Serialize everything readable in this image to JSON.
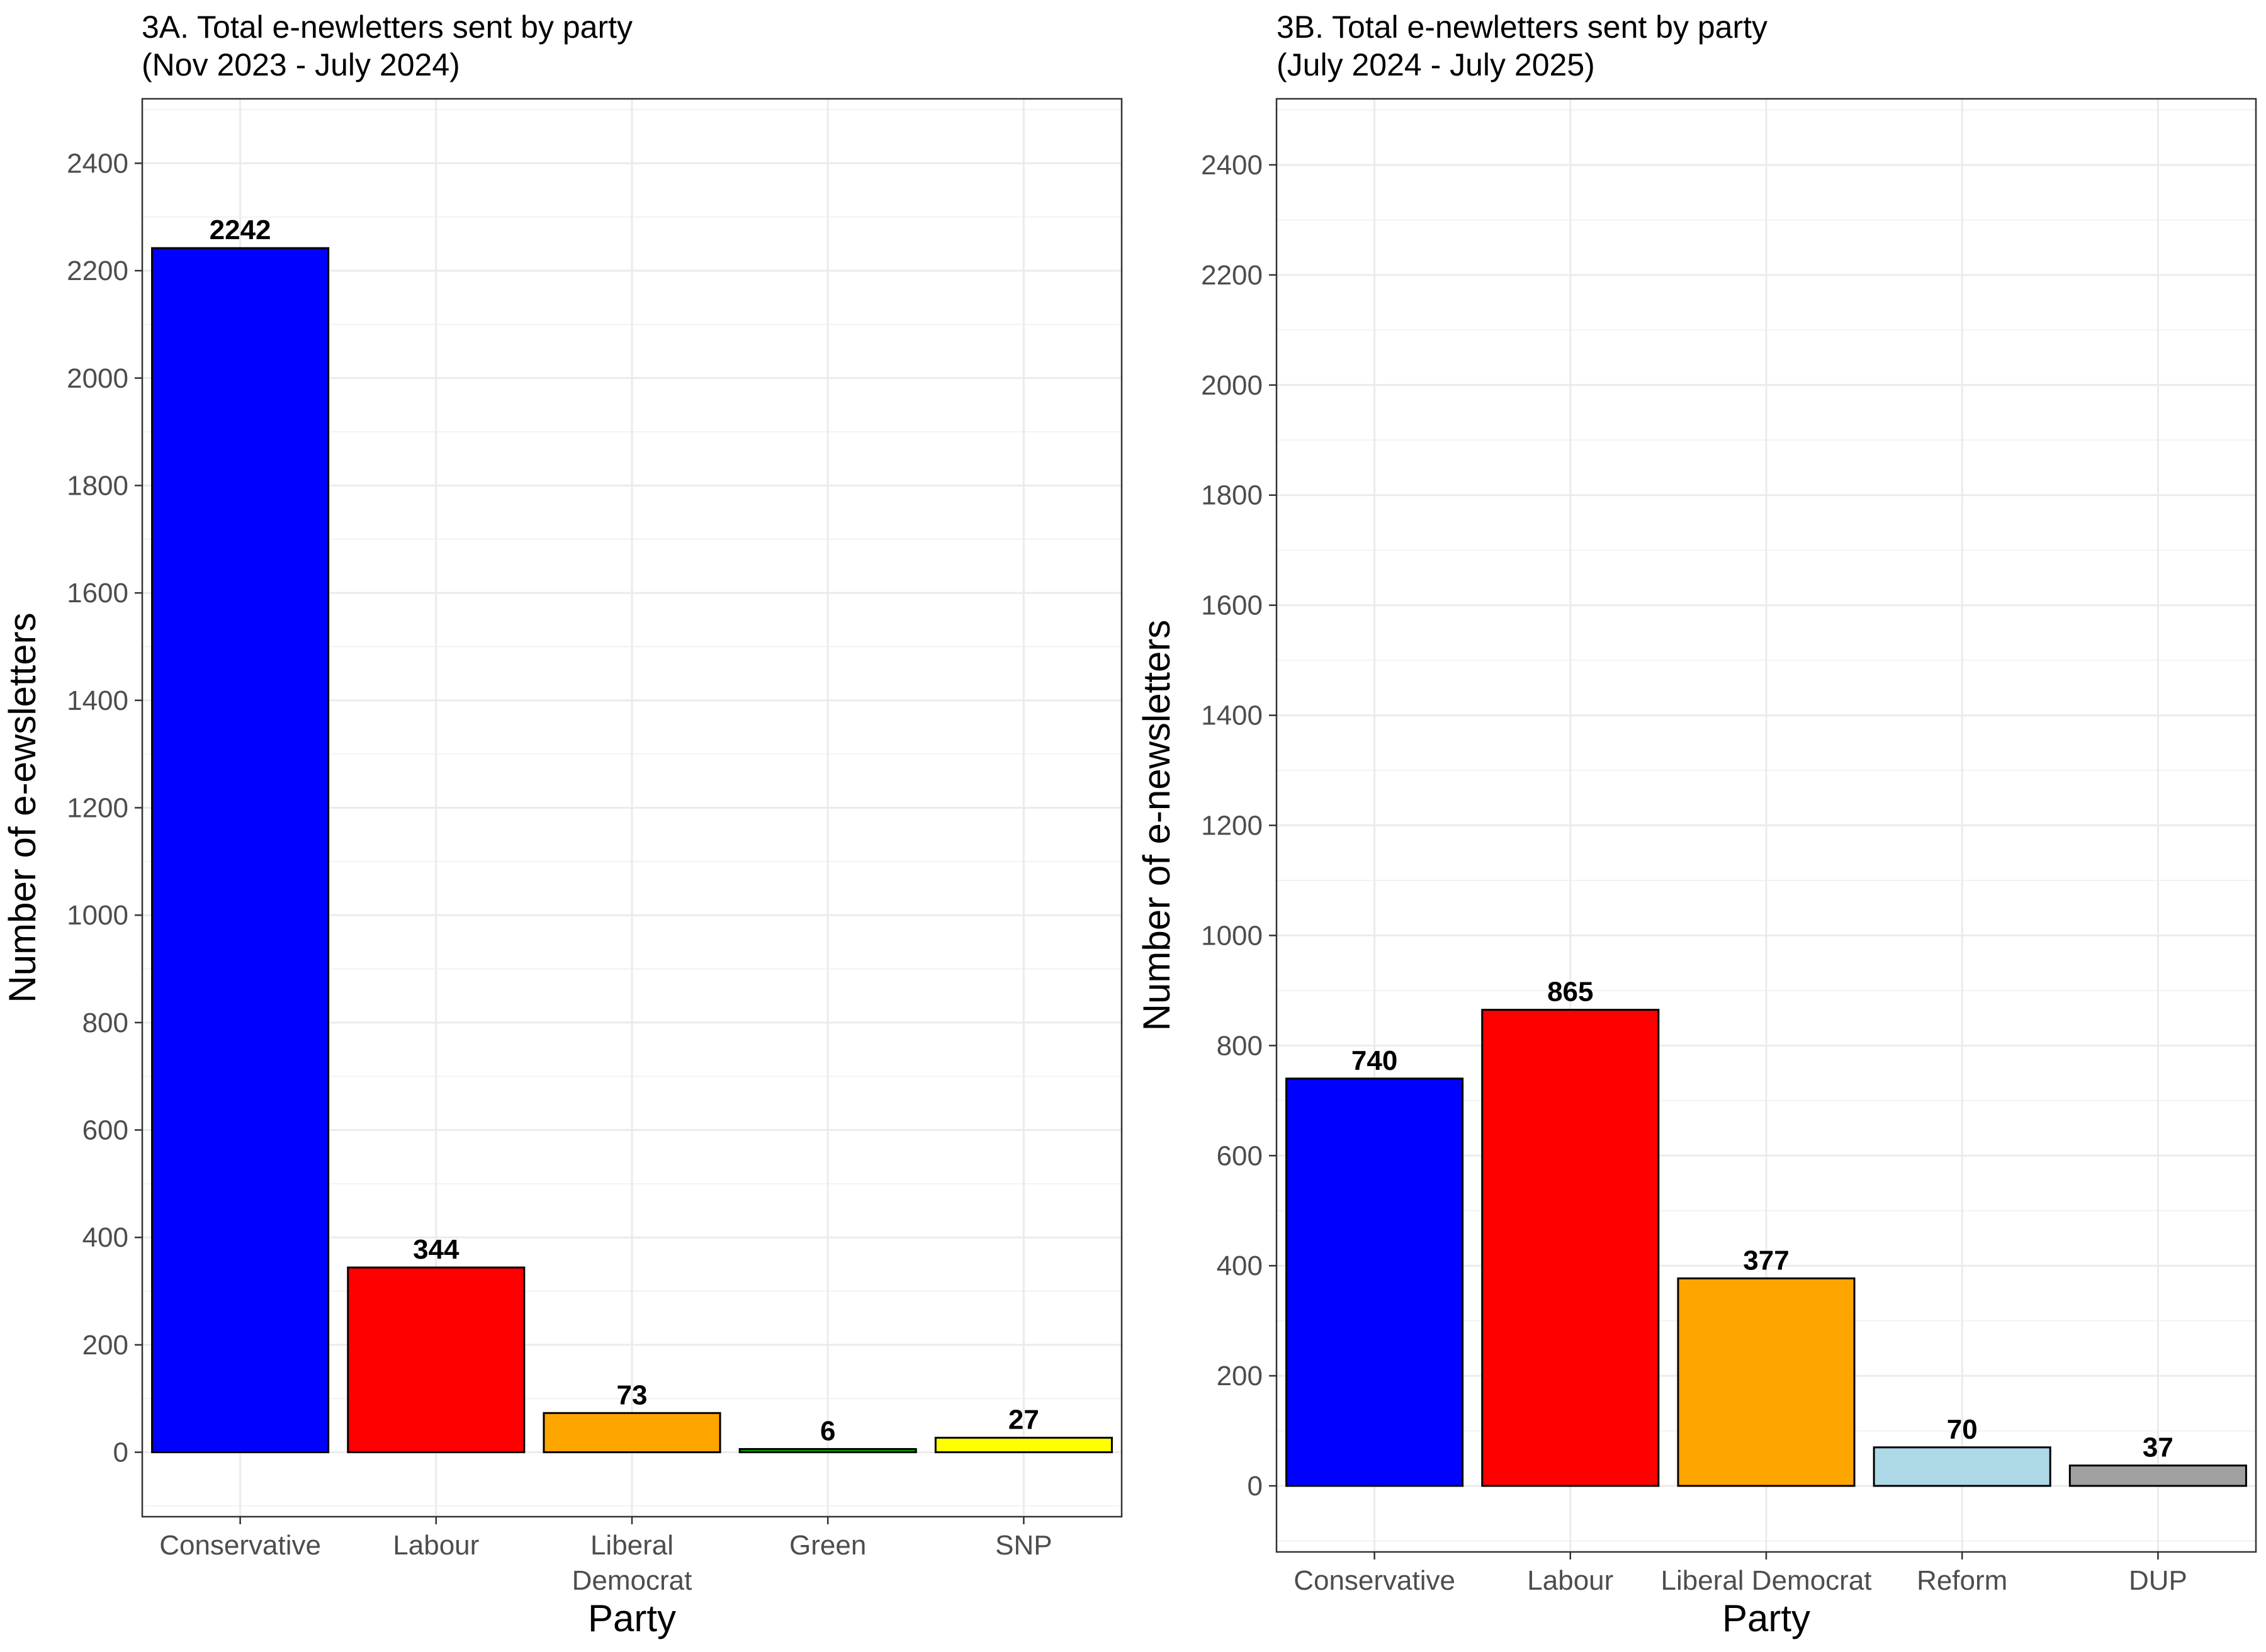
{
  "chart_data": [
    {
      "type": "bar",
      "title": "3A. Total e-newletters sent by party",
      "subtitle": "(Nov 2023 - July 2024)",
      "xlabel": "Party",
      "ylabel": "Number of e-ewsletters",
      "categories": [
        "Conservative",
        "Labour",
        "Liberal\nDemocrat",
        "Green",
        "SNP"
      ],
      "values": [
        2242,
        344,
        73,
        6,
        27
      ],
      "colors": [
        "#0000ff",
        "#ff0000",
        "#ffa500",
        "#00a000",
        "#ffff00"
      ],
      "ylim": [
        -120,
        2520
      ],
      "yticks": [
        0,
        200,
        400,
        600,
        800,
        1000,
        1200,
        1400,
        1600,
        1800,
        2000,
        2200,
        2400
      ],
      "grid": true,
      "legend": "none"
    },
    {
      "type": "bar",
      "title": "3B. Total e-newletters sent by party",
      "subtitle": "(July 2024 - July 2025)",
      "xlabel": "Party",
      "ylabel": "Number of e-newsletters",
      "categories": [
        "Conservative",
        "Labour",
        "Liberal Democrat",
        "Reform",
        "DUP"
      ],
      "values": [
        740,
        865,
        377,
        70,
        37
      ],
      "colors": [
        "#0000ff",
        "#ff0000",
        "#ffa500",
        "#add8e6",
        "#a0a0a0"
      ],
      "ylim": [
        -120,
        2520
      ],
      "yticks": [
        0,
        200,
        400,
        600,
        800,
        1000,
        1200,
        1400,
        1600,
        1800,
        2000,
        2200,
        2400
      ],
      "grid": true,
      "legend": "none"
    }
  ]
}
